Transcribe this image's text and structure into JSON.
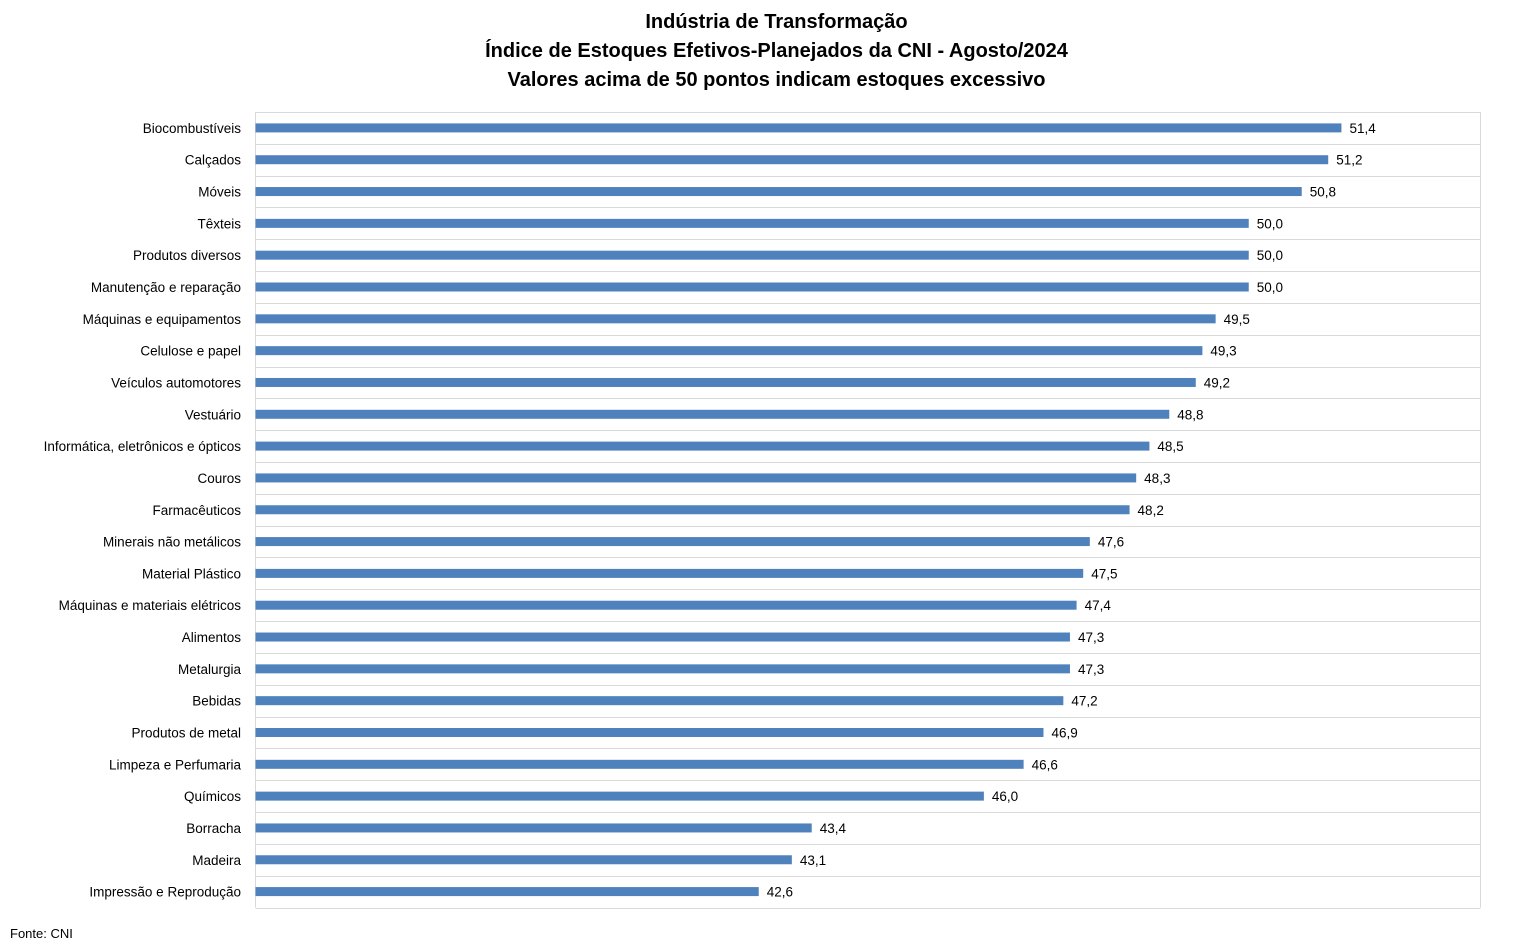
{
  "chart_data": {
    "type": "bar",
    "orientation": "horizontal",
    "title": [
      "Indústria de Transformação",
      "Índice de Estoques Efetivos-Planejados da CNI - Agosto/2024",
      "Valores acima de 50 pontos indicam estoques excessivo"
    ],
    "xlabel": "",
    "ylabel": "",
    "categories": [
      "Biocombustíveis",
      "Calçados",
      "Móveis",
      "Têxteis",
      "Produtos diversos",
      "Manutenção e reparação",
      "Máquinas e equipamentos",
      "Celulose e papel",
      "Veículos automotores",
      "Vestuário",
      "Informática, eletrônicos e ópticos",
      "Couros",
      "Farmacêuticos",
      "Minerais não metálicos",
      "Material Plástico",
      "Máquinas e materiais elétricos",
      "Alimentos",
      "Metalurgia",
      "Bebidas",
      "Produtos de metal",
      "Limpeza e Perfumaria",
      "Químicos",
      "Borracha",
      "Madeira",
      "Impressão e Reprodução"
    ],
    "values": [
      51.4,
      51.2,
      50.8,
      50.0,
      50.0,
      50.0,
      49.5,
      49.3,
      49.2,
      48.8,
      48.5,
      48.3,
      48.2,
      47.6,
      47.5,
      47.4,
      47.3,
      47.3,
      47.2,
      46.9,
      46.6,
      46.0,
      43.4,
      43.1,
      42.6
    ],
    "value_labels": [
      "51,4",
      "51,2",
      "50,8",
      "50,0",
      "50,0",
      "50,0",
      "49,5",
      "49,3",
      "49,2",
      "48,8",
      "48,5",
      "48,3",
      "48,2",
      "47,6",
      "47,5",
      "47,4",
      "47,3",
      "47,3",
      "47,2",
      "46,9",
      "46,6",
      "46,0",
      "43,4",
      "43,1",
      "42,6"
    ],
    "xlim": [
      35,
      53.5
    ],
    "grid": true,
    "bar_color": "#4f81bd",
    "grid_color": "#d9d9d9"
  },
  "source": "Fonte: CNI"
}
